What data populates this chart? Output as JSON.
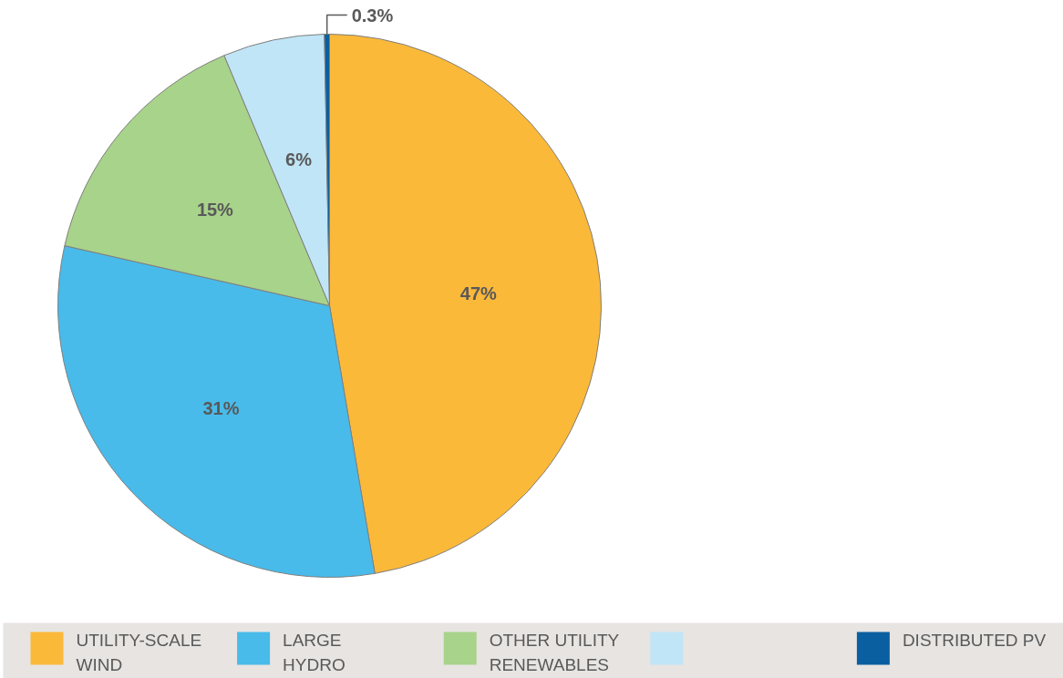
{
  "chart_data": {
    "type": "pie",
    "categories": [
      "UTILITY-SCALE\nWIND",
      "LARGE\nHYDRO",
      "OTHER UTILITY\nRENEWABLES",
      null,
      "DISTRIBUTED PV"
    ],
    "values": [
      47,
      31,
      15,
      6,
      0.3
    ],
    "colors": [
      "#fbb93a",
      "#48bbea",
      "#a8d38b",
      "#c0e5f6",
      "#0a5fa0"
    ],
    "value_labels": [
      "47%",
      "31%",
      "15%",
      "6%",
      "0.3%"
    ],
    "legend": "bottom"
  }
}
